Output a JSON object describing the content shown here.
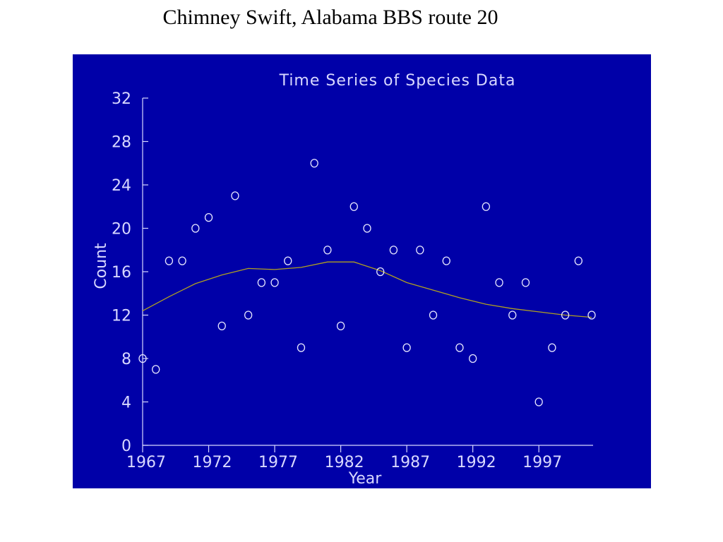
{
  "slide_title": "Chimney Swift, Alabama BBS route 20",
  "colors": {
    "panel": "#0000a8",
    "axis": "#d8d8ff",
    "points": "#e8e8ff",
    "trend": "#b0a020",
    "page": "#ffffff"
  },
  "chart_data": {
    "type": "scatter",
    "title": "Time Series of Species Data",
    "xlabel": "Year",
    "ylabel": "Count",
    "xlim": [
      1967,
      2001
    ],
    "ylim": [
      0,
      32
    ],
    "x_ticks": [
      1967,
      1972,
      1977,
      1982,
      1987,
      1992,
      1997
    ],
    "y_ticks": [
      0,
      4,
      8,
      12,
      16,
      20,
      24,
      28,
      32
    ],
    "grid": false,
    "legend": "none",
    "series": [
      {
        "kind": "points",
        "x": [
          1967,
          1968,
          1969,
          1970,
          1971,
          1972,
          1973,
          1974,
          1975,
          1976,
          1977,
          1978,
          1979,
          1980,
          1981,
          1982,
          1983,
          1984,
          1985,
          1986,
          1987,
          1988,
          1989,
          1990,
          1991,
          1992,
          1993,
          1994,
          1995,
          1996,
          1997,
          1998,
          1999,
          2000,
          2001
        ],
        "y": [
          8,
          7,
          17,
          17,
          20,
          21,
          11,
          23,
          12,
          15,
          15,
          17,
          9,
          26,
          18,
          11,
          22,
          20,
          16,
          18,
          9,
          18,
          12,
          17,
          9,
          8,
          22,
          15,
          12,
          15,
          4,
          9,
          12,
          17,
          12
        ]
      },
      {
        "kind": "trend",
        "x": [
          1967,
          1969,
          1971,
          1973,
          1975,
          1977,
          1979,
          1981,
          1983,
          1985,
          1987,
          1989,
          1991,
          1993,
          1995,
          1997,
          1999,
          2001
        ],
        "y": [
          12.4,
          13.7,
          14.9,
          15.7,
          16.3,
          16.2,
          16.4,
          16.9,
          16.9,
          16.1,
          15.0,
          14.3,
          13.6,
          13.0,
          12.6,
          12.3,
          12.0,
          11.8
        ]
      }
    ]
  }
}
